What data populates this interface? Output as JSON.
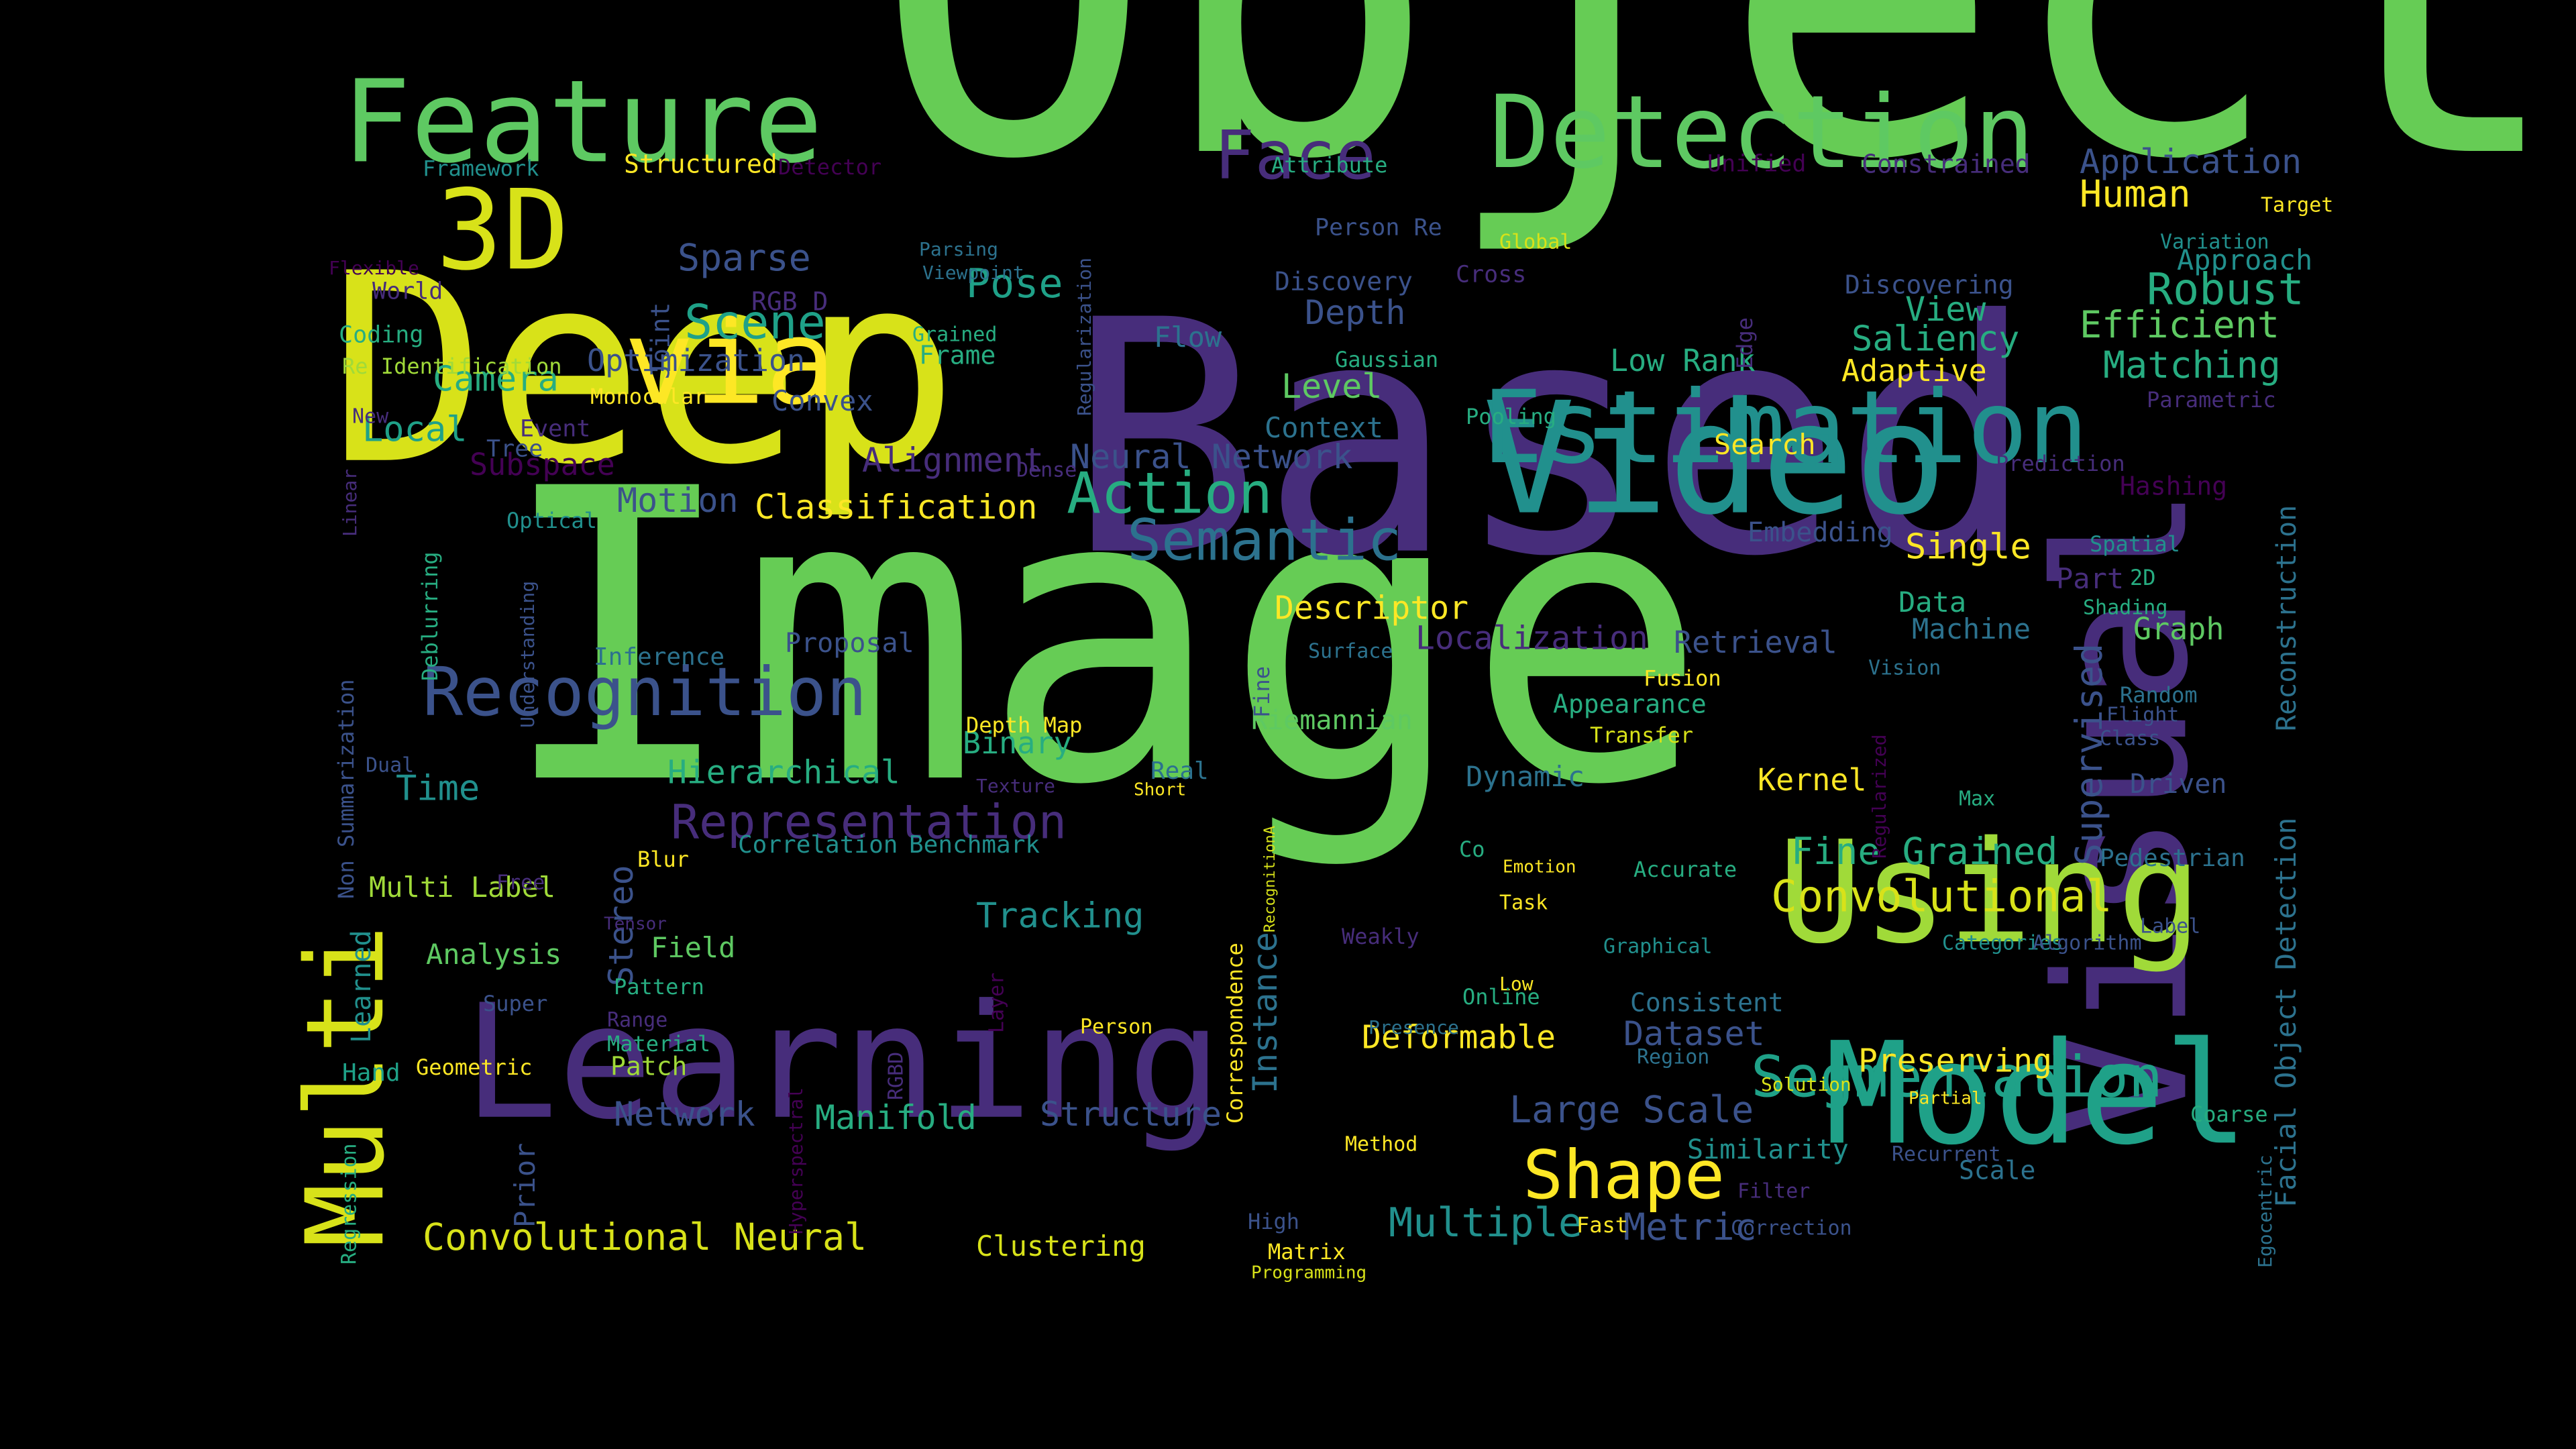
{
  "background": "#000000",
  "palette": {
    "a": "#66cc55",
    "b": "#d8e219",
    "c": "#472d7b",
    "d": "#21908d",
    "e": "#fde725",
    "f": "#3b528b",
    "g": "#27ad81",
    "h": "#a0da39",
    "i": "#5ec962",
    "j": "#2c728e",
    "k": "#440154",
    "l": "#1fa188"
  },
  "words": [
    {
      "t": "Object",
      "c": "a"
    },
    {
      "t": "Image",
      "c": "a"
    },
    {
      "t": "Based",
      "c": "c"
    },
    {
      "t": "Deep",
      "c": "b"
    },
    {
      "t": "Learning",
      "c": "c"
    },
    {
      "t": "Visual",
      "c": "c"
    },
    {
      "t": "Video",
      "c": "d"
    },
    {
      "t": "Model",
      "c": "l"
    },
    {
      "t": "Using",
      "c": "h"
    },
    {
      "t": "Feature",
      "c": "i"
    },
    {
      "t": "Detection",
      "c": "i"
    },
    {
      "t": "Estimation",
      "c": "d"
    },
    {
      "t": "Multi",
      "c": "b"
    },
    {
      "t": "via",
      "c": "e"
    },
    {
      "t": "3D",
      "c": "b"
    },
    {
      "t": "Recognition",
      "c": "f"
    },
    {
      "t": "Face",
      "c": "c"
    },
    {
      "t": "Segmentation",
      "c": "l"
    },
    {
      "t": "Semantic",
      "c": "j"
    },
    {
      "t": "Action",
      "c": "g"
    },
    {
      "t": "Shape",
      "c": "e"
    },
    {
      "t": "Representation",
      "c": "c"
    },
    {
      "t": "Convolutional Neural",
      "c": "b"
    },
    {
      "t": "Convolutional",
      "c": "b"
    },
    {
      "t": "Fine Grained",
      "c": "g"
    },
    {
      "t": "Scene",
      "c": "l"
    },
    {
      "t": "Sparse",
      "c": "f"
    },
    {
      "t": "Pose",
      "c": "l"
    },
    {
      "t": "Robust",
      "c": "g"
    },
    {
      "t": "Efficient",
      "c": "i"
    },
    {
      "t": "Matching",
      "c": "g"
    },
    {
      "t": "Human",
      "c": "e"
    },
    {
      "t": "Application",
      "c": "f"
    },
    {
      "t": "Supervised",
      "c": "f"
    },
    {
      "t": "Facial Object Detection",
      "c": "j"
    },
    {
      "t": "Reconstruction",
      "c": "j"
    },
    {
      "t": "Large Scale",
      "c": "f"
    },
    {
      "t": "Multiple",
      "c": "d"
    },
    {
      "t": "Metric",
      "c": "f"
    },
    {
      "t": "Structure",
      "c": "f"
    },
    {
      "t": "Manifold",
      "c": "g"
    },
    {
      "t": "Network",
      "c": "f"
    },
    {
      "t": "Neural Network",
      "c": "f"
    },
    {
      "t": "Tracking",
      "c": "d"
    },
    {
      "t": "Hierarchical",
      "c": "g"
    },
    {
      "t": "Binary",
      "c": "g"
    },
    {
      "t": "Classification",
      "c": "e"
    },
    {
      "t": "Alignment",
      "c": "c"
    },
    {
      "t": "Optimization",
      "c": "f"
    },
    {
      "t": "Camera",
      "c": "g"
    },
    {
      "t": "Local",
      "c": "l"
    },
    {
      "t": "Motion",
      "c": "f"
    },
    {
      "t": "Subspace",
      "c": "k"
    },
    {
      "t": "Time",
      "c": "d"
    },
    {
      "t": "Stereo",
      "c": "f"
    },
    {
      "t": "Instance",
      "c": "j"
    },
    {
      "t": "Dataset",
      "c": "f"
    },
    {
      "t": "Deformable",
      "c": "e"
    },
    {
      "t": "Preserving",
      "c": "e"
    },
    {
      "t": "Single",
      "c": "e"
    },
    {
      "t": "Descriptor",
      "c": "e"
    },
    {
      "t": "Localization",
      "c": "c"
    },
    {
      "t": "Retrieval",
      "c": "f"
    },
    {
      "t": "Machine",
      "c": "j"
    },
    {
      "t": "Data",
      "c": "g"
    },
    {
      "t": "Graph",
      "c": "i"
    },
    {
      "t": "Saliency",
      "c": "g"
    },
    {
      "t": "View",
      "c": "g"
    },
    {
      "t": "Adaptive",
      "c": "e"
    },
    {
      "t": "Low Rank",
      "c": "g"
    },
    {
      "t": "Depth",
      "c": "f"
    },
    {
      "t": "Level",
      "c": "i"
    },
    {
      "t": "Context",
      "c": "j"
    },
    {
      "t": "Flow",
      "c": "j"
    },
    {
      "t": "Discovery",
      "c": "f"
    },
    {
      "t": "Discovering",
      "c": "f"
    },
    {
      "t": "Kernel",
      "c": "e"
    },
    {
      "t": "Dynamic",
      "c": "j"
    },
    {
      "t": "Clustering",
      "c": "b"
    },
    {
      "t": "Convex",
      "c": "f"
    },
    {
      "t": "Field",
      "c": "i"
    },
    {
      "t": "Analysis",
      "c": "i"
    },
    {
      "t": "Multi Label",
      "c": "h"
    },
    {
      "t": "Search",
      "c": "e"
    },
    {
      "t": "Embedding",
      "c": "f"
    },
    {
      "t": "Riemannian",
      "c": "i"
    },
    {
      "t": "Appearance",
      "c": "g"
    },
    {
      "t": "Inference",
      "c": "j"
    },
    {
      "t": "Proposal",
      "c": "f"
    },
    {
      "t": "Hashing",
      "c": "k"
    },
    {
      "t": "Driven",
      "c": "f"
    },
    {
      "t": "Pedestrian",
      "c": "j"
    },
    {
      "t": "Scale",
      "c": "j"
    },
    {
      "t": "Similarity",
      "c": "d"
    },
    {
      "t": "Correlation",
      "c": "d"
    },
    {
      "t": "Benchmark",
      "c": "d"
    },
    {
      "t": "Consistent",
      "c": "j"
    },
    {
      "t": "Prior",
      "c": "f"
    },
    {
      "t": "Hyperspectral",
      "c": "k"
    },
    {
      "t": "Correspondence",
      "c": "e"
    },
    {
      "t": "Non Summarization",
      "c": "f"
    },
    {
      "t": "Deblurring",
      "c": "g"
    },
    {
      "t": "Understanding",
      "c": "f"
    },
    {
      "t": "Regression",
      "c": "g"
    },
    {
      "t": "Learned",
      "c": "d"
    },
    {
      "t": "Joint",
      "c": "f"
    },
    {
      "t": "Regularization",
      "c": "f"
    },
    {
      "t": "Regularized",
      "c": "k"
    },
    {
      "t": "Accurate",
      "c": "g"
    },
    {
      "t": "Coding",
      "c": "g"
    },
    {
      "t": "Re Identification",
      "c": "h"
    },
    {
      "t": "Monocular",
      "c": "e"
    },
    {
      "t": "World",
      "c": "c"
    },
    {
      "t": "Framework",
      "c": "d"
    },
    {
      "t": "Structured",
      "c": "e"
    },
    {
      "t": "Detector",
      "c": "k"
    },
    {
      "t": "Flexible",
      "c": "k"
    },
    {
      "t": "Parsing",
      "c": "j"
    },
    {
      "t": "Viewpoint",
      "c": "j"
    },
    {
      "t": "Grained",
      "c": "g"
    },
    {
      "t": "Frame",
      "c": "g"
    },
    {
      "t": "RGB D",
      "c": "c"
    },
    {
      "t": "Attribute",
      "c": "g"
    },
    {
      "t": "Person Re",
      "c": "f"
    },
    {
      "t": "Global",
      "c": "b"
    },
    {
      "t": "Cross",
      "c": "c"
    },
    {
      "t": "Gaussian",
      "c": "g"
    },
    {
      "t": "Unified",
      "c": "k"
    },
    {
      "t": "Constrained",
      "c": "c"
    },
    {
      "t": "Target",
      "c": "e"
    },
    {
      "t": "Variation",
      "c": "d"
    },
    {
      "t": "Approach",
      "c": "d"
    },
    {
      "t": "Edge",
      "c": "c"
    },
    {
      "t": "Parametric",
      "c": "c"
    },
    {
      "t": "Pooling",
      "c": "g"
    },
    {
      "t": "Prediction",
      "c": "c"
    },
    {
      "t": "Spatial",
      "c": "d"
    },
    {
      "t": "Part",
      "c": "c"
    },
    {
      "t": "2D",
      "c": "g"
    },
    {
      "t": "Shading",
      "c": "g"
    },
    {
      "t": "Vision",
      "c": "j"
    },
    {
      "t": "Fusion",
      "c": "e"
    },
    {
      "t": "Transfer",
      "c": "b"
    },
    {
      "t": "Random",
      "c": "j"
    },
    {
      "t": "Flight",
      "c": "f"
    },
    {
      "t": "Class",
      "c": "f"
    },
    {
      "t": "Max",
      "c": "g"
    },
    {
      "t": "Surface",
      "c": "j"
    },
    {
      "t": "Fine",
      "c": "f"
    },
    {
      "t": "Depth Map",
      "c": "e"
    },
    {
      "t": "Texture",
      "c": "c"
    },
    {
      "t": "Real",
      "c": "j"
    },
    {
      "t": "Short",
      "c": "e"
    },
    {
      "t": "RecognitionA",
      "c": "b"
    },
    {
      "t": "Emotion",
      "c": "e"
    },
    {
      "t": "Co",
      "c": "g"
    },
    {
      "t": "Task",
      "c": "e"
    },
    {
      "t": "Weakly",
      "c": "c"
    },
    {
      "t": "Graphical",
      "c": "d"
    },
    {
      "t": "Low",
      "c": "e"
    },
    {
      "t": "Online",
      "c": "g"
    },
    {
      "t": "Presence",
      "c": "j"
    },
    {
      "t": "Region",
      "c": "j"
    },
    {
      "t": "Solution",
      "c": "b"
    },
    {
      "t": "Partial",
      "c": "e"
    },
    {
      "t": "Coarse",
      "c": "g"
    },
    {
      "t": "Recurrent",
      "c": "f"
    },
    {
      "t": "Filter",
      "c": "c"
    },
    {
      "t": "Correction",
      "c": "f"
    },
    {
      "t": "Fast",
      "c": "e"
    },
    {
      "t": "Method",
      "c": "e"
    },
    {
      "t": "High",
      "c": "f"
    },
    {
      "t": "Matrix",
      "c": "e"
    },
    {
      "t": "Programming",
      "c": "b"
    },
    {
      "t": "Categories",
      "c": "d"
    },
    {
      "t": "Algorithm",
      "c": "f"
    },
    {
      "t": "Label",
      "c": "f"
    },
    {
      "t": "Egocentric",
      "c": "j"
    },
    {
      "t": "Person",
      "c": "e"
    },
    {
      "t": "Layer",
      "c": "k"
    },
    {
      "t": "RGBD",
      "c": "c"
    },
    {
      "t": "Dense",
      "c": "c"
    },
    {
      "t": "Blur",
      "c": "e"
    },
    {
      "t": "Free",
      "c": "c"
    },
    {
      "t": "Tensor",
      "c": "c"
    },
    {
      "t": "Pattern",
      "c": "g"
    },
    {
      "t": "Super",
      "c": "f"
    },
    {
      "t": "Range",
      "c": "c"
    },
    {
      "t": "Material",
      "c": "g"
    },
    {
      "t": "Patch",
      "c": "h"
    },
    {
      "t": "Geometric",
      "c": "e"
    },
    {
      "t": "Hand",
      "c": "l"
    },
    {
      "t": "Dual",
      "c": "f"
    },
    {
      "t": "Linear",
      "c": "c"
    },
    {
      "t": "Optical",
      "c": "d"
    },
    {
      "t": "Event",
      "c": "c"
    },
    {
      "t": "Tree",
      "c": "f"
    },
    {
      "t": "New",
      "c": "c"
    }
  ]
}
